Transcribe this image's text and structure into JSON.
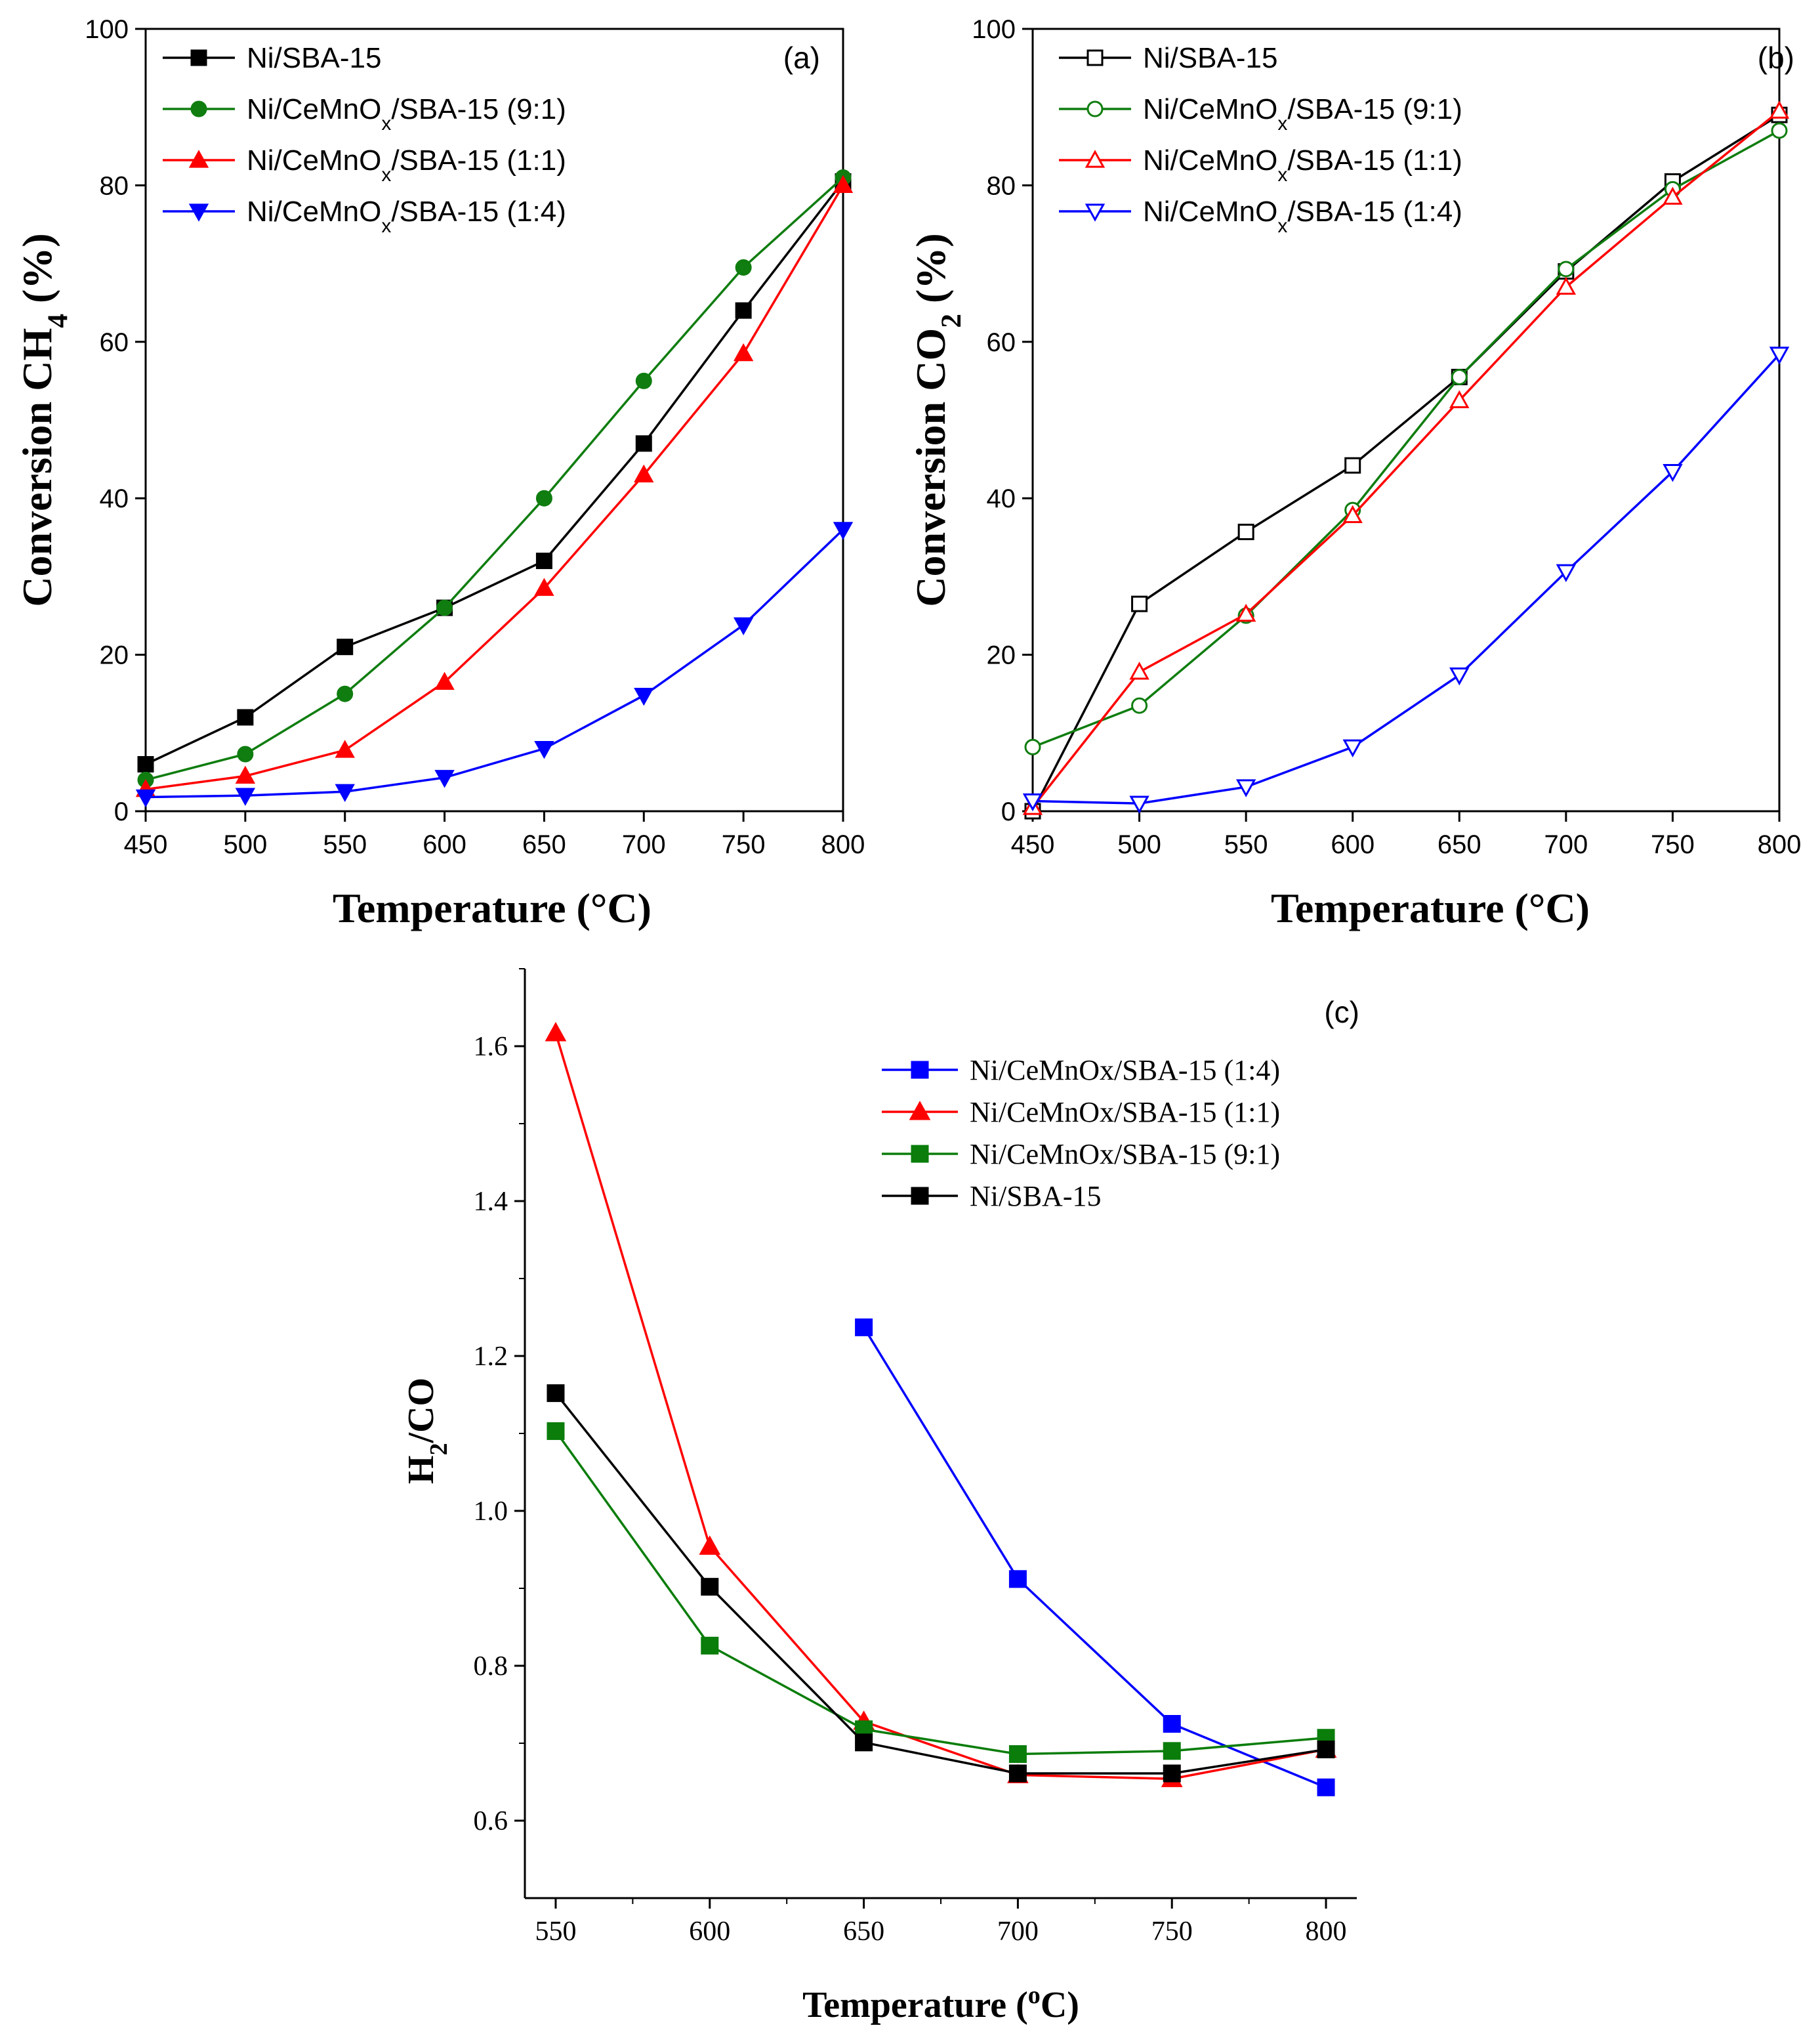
{
  "chart_data": [
    {
      "panel": "(a)",
      "type": "line",
      "xlabel": "Temperature (°C)",
      "ylabel": "Conversion CH4 (%)",
      "ylabel_parts": [
        "Conversion CH",
        "4",
        " (%)"
      ],
      "xlim": [
        450,
        800
      ],
      "ylim": [
        0,
        100
      ],
      "x_ticks": [
        "450",
        "500",
        "550",
        "600",
        "650",
        "700",
        "750",
        "800"
      ],
      "y_ticks": [
        "0",
        "20",
        "40",
        "60",
        "80",
        "100"
      ],
      "x": [
        450,
        500,
        550,
        600,
        650,
        700,
        750,
        800
      ],
      "series": [
        {
          "name": "Ni/SBA-15",
          "name_parts": [
            "Ni/SBA-15"
          ],
          "color": "#000000",
          "marker": "square",
          "filled": true,
          "values": [
            6,
            12,
            21,
            26,
            32,
            47,
            64,
            80.5
          ]
        },
        {
          "name": "Ni/CeMnOx/SBA-15 (9:1)",
          "name_parts": [
            "Ni/CeMnO",
            "x",
            "/SBA-15 (9:1)"
          ],
          "color": "#0f7d0f",
          "marker": "circle",
          "filled": true,
          "values": [
            4,
            7.3,
            15,
            26,
            40,
            55,
            69.5,
            81
          ]
        },
        {
          "name": "Ni/CeMnOx/SBA-15 (1:1)",
          "name_parts": [
            "Ni/CeMnO",
            "x",
            "/SBA-15 (1:1)"
          ],
          "color": "#ff0000",
          "marker": "triangle-up",
          "filled": true,
          "values": [
            2.8,
            4.5,
            7.8,
            16.5,
            28.5,
            43,
            58.5,
            80
          ]
        },
        {
          "name": "Ni/CeMnOx/SBA-15 (1:4)",
          "name_parts": [
            "Ni/CeMnO",
            "x",
            "/SBA-15 (1:4)"
          ],
          "color": "#0000ff",
          "marker": "triangle-down",
          "filled": true,
          "values": [
            1.8,
            2,
            2.5,
            4.3,
            8,
            14.8,
            23.8,
            36
          ]
        }
      ]
    },
    {
      "panel": "(b)",
      "type": "line",
      "xlabel": "Temperature (°C)",
      "ylabel": "Conversion CO2 (%)",
      "ylabel_parts": [
        "Conversion CO",
        "2",
        " (%)"
      ],
      "xlim": [
        450,
        800
      ],
      "ylim": [
        0,
        100
      ],
      "x_ticks": [
        "450",
        "500",
        "550",
        "600",
        "650",
        "700",
        "750",
        "800"
      ],
      "y_ticks": [
        "0",
        "20",
        "40",
        "60",
        "80",
        "100"
      ],
      "x": [
        450,
        500,
        550,
        600,
        650,
        700,
        750,
        800
      ],
      "series": [
        {
          "name": "Ni/SBA-15",
          "name_parts": [
            "Ni/SBA-15"
          ],
          "color": "#000000",
          "marker": "square",
          "filled": false,
          "values": [
            0,
            26.5,
            35.7,
            44.2,
            55.5,
            69,
            80.5,
            89
          ]
        },
        {
          "name": "Ni/CeMnOx/SBA-15 (9:1)",
          "name_parts": [
            "Ni/CeMnO",
            "x",
            "/SBA-15 (9:1)"
          ],
          "color": "#0f7d0f",
          "marker": "circle",
          "filled": false,
          "values": [
            8.2,
            13.5,
            25,
            38.5,
            55.5,
            69.3,
            79.5,
            87
          ]
        },
        {
          "name": "Ni/CeMnOx/SBA-15 (1:1)",
          "name_parts": [
            "Ni/CeMnO",
            "x",
            "/SBA-15 (1:1)"
          ],
          "color": "#ff0000",
          "marker": "triangle-up",
          "filled": false,
          "values": [
            0.5,
            17.8,
            25.2,
            37.8,
            52.5,
            67,
            78.5,
            89.5
          ]
        },
        {
          "name": "Ni/CeMnOx/SBA-15 (1:4)",
          "name_parts": [
            "Ni/CeMnO",
            "x",
            "/SBA-15 (1:4)"
          ],
          "color": "#0000ff",
          "marker": "triangle-down",
          "filled": false,
          "values": [
            1.3,
            1,
            3.1,
            8.2,
            17.4,
            30.6,
            43.4,
            58.4
          ]
        }
      ]
    },
    {
      "panel": "(c)",
      "type": "line",
      "xlabel": "Temperature (oC)",
      "xlabel_parts": [
        "Temperature (",
        "o",
        "C)"
      ],
      "ylabel": "H2/CO",
      "ylabel_parts": [
        "H",
        "2",
        "/CO"
      ],
      "xlim": [
        540,
        810
      ],
      "ylim": [
        0.5,
        1.7
      ],
      "x_ticks": [
        "550",
        "600",
        "650",
        "700",
        "750",
        "800"
      ],
      "y_ticks": [
        "0.6",
        "0.8",
        "1.0",
        "1.2",
        "1.4",
        "1.6"
      ],
      "series": [
        {
          "name": "Ni/CeMnOx/SBA-15 (1:4)",
          "name_parts": [
            "Ni/CeMnOx/SBA-15 (1:4)"
          ],
          "color": "#0000ff",
          "marker": "square",
          "filled": true,
          "x": [
            650,
            700,
            750,
            800
          ],
          "values": [
            1.237,
            0.912,
            0.725,
            0.643
          ]
        },
        {
          "name": "Ni/CeMnOx/SBA-15 (1:1)",
          "name_parts": [
            "Ni/CeMnOx/SBA-15 (1:1)"
          ],
          "color": "#ff0000",
          "marker": "triangle-up",
          "filled": true,
          "x": [
            550,
            600,
            650,
            700,
            750,
            800
          ],
          "values": [
            1.617,
            0.954,
            0.728,
            0.659,
            0.654,
            0.692
          ]
        },
        {
          "name": "Ni/CeMnOx/SBA-15 (9:1)",
          "name_parts": [
            "Ni/CeMnOx/SBA-15 (9:1)"
          ],
          "color": "#0a7d0a",
          "marker": "square",
          "filled": true,
          "x": [
            550,
            600,
            650,
            700,
            750,
            800
          ],
          "values": [
            1.103,
            0.826,
            0.718,
            0.686,
            0.69,
            0.707
          ]
        },
        {
          "name": "Ni/SBA-15",
          "name_parts": [
            "Ni/SBA-15"
          ],
          "color": "#000000",
          "marker": "square",
          "filled": true,
          "x": [
            550,
            600,
            650,
            700,
            750,
            800
          ],
          "values": [
            1.152,
            0.902,
            0.701,
            0.661,
            0.661,
            0.692
          ]
        }
      ]
    }
  ]
}
